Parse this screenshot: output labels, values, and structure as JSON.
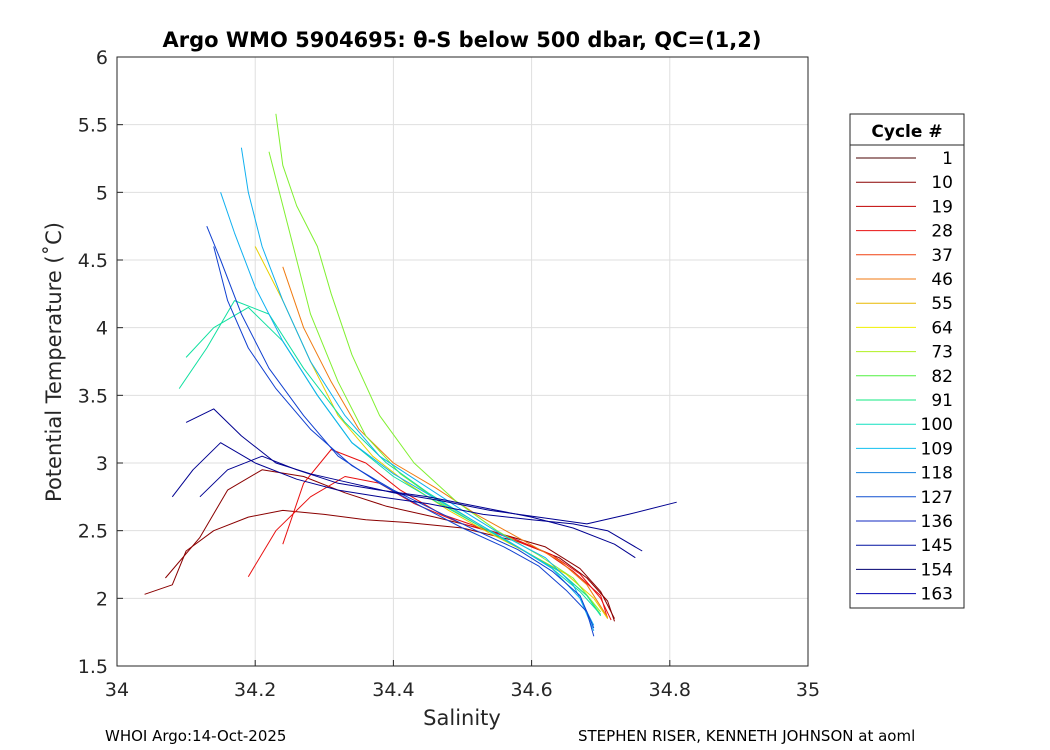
{
  "chart_data": {
    "type": "line",
    "title": "Argo WMO 5904695: θ-S below 500 dbar,  QC=(1,2)",
    "xlabel": "Salinity",
    "ylabel": "Potential Temperature (˚C)",
    "xlim": [
      34,
      35
    ],
    "ylim": [
      1.5,
      6
    ],
    "xticks": [
      "34",
      "34.2",
      "34.4",
      "34.6",
      "34.8",
      "35"
    ],
    "yticks": [
      "1.5",
      "2",
      "2.5",
      "3",
      "3.5",
      "4",
      "4.5",
      "5",
      "5.5",
      "6"
    ],
    "grid": true,
    "legend": {
      "title": "Cycle #",
      "placement": "outside-right",
      "entries": [
        {
          "label": "1",
          "color": "#4a0000"
        },
        {
          "label": "10",
          "color": "#8a0000"
        },
        {
          "label": "19",
          "color": "#c00000"
        },
        {
          "label": "28",
          "color": "#e81010"
        },
        {
          "label": "37",
          "color": "#f04010"
        },
        {
          "label": "46",
          "color": "#f07a10"
        },
        {
          "label": "55",
          "color": "#e8b800"
        },
        {
          "label": "64",
          "color": "#f0f000"
        },
        {
          "label": "73",
          "color": "#b0f020"
        },
        {
          "label": "82",
          "color": "#50f040"
        },
        {
          "label": "91",
          "color": "#10e880"
        },
        {
          "label": "100",
          "color": "#10e0c0"
        },
        {
          "label": "109",
          "color": "#10c0f0"
        },
        {
          "label": "118",
          "color": "#1080e0"
        },
        {
          "label": "127",
          "color": "#1050d0"
        },
        {
          "label": "136",
          "color": "#1028c0"
        },
        {
          "label": "145",
          "color": "#0010a0"
        },
        {
          "label": "154",
          "color": "#000070"
        },
        {
          "label": "163",
          "color": "#0000b0"
        }
      ]
    },
    "series": [
      {
        "name": "cycle 1-10",
        "color": "#8a0000",
        "curves": [
          {
            "x": [
              34.04,
              34.08,
              34.1,
              34.14,
              34.19,
              34.24,
              34.3,
              34.36,
              34.42,
              34.5,
              34.58,
              34.64,
              34.68,
              34.71,
              34.72
            ],
            "y": [
              2.03,
              2.1,
              2.35,
              2.5,
              2.6,
              2.65,
              2.62,
              2.58,
              2.56,
              2.52,
              2.42,
              2.3,
              2.15,
              1.98,
              1.83
            ]
          },
          {
            "x": [
              34.07,
              34.12,
              34.16,
              34.21,
              34.27,
              34.33,
              34.39,
              34.46,
              34.54,
              34.62,
              34.67,
              34.7,
              34.72
            ],
            "y": [
              2.15,
              2.45,
              2.8,
              2.95,
              2.9,
              2.78,
              2.68,
              2.6,
              2.5,
              2.38,
              2.22,
              2.05,
              1.85
            ]
          }
        ]
      },
      {
        "name": "cycle 19-37",
        "color": "#e81010",
        "curves": [
          {
            "x": [
              34.19,
              34.23,
              34.28,
              34.33,
              34.38,
              34.43,
              34.5,
              34.57,
              34.63,
              34.67,
              34.7,
              34.715
            ],
            "y": [
              2.16,
              2.5,
              2.75,
              2.9,
              2.85,
              2.7,
              2.55,
              2.45,
              2.32,
              2.18,
              2.0,
              1.84
            ]
          },
          {
            "x": [
              34.24,
              34.27,
              34.31,
              34.36,
              34.41,
              34.47,
              34.55,
              34.62,
              34.66,
              34.7,
              34.71
            ],
            "y": [
              2.4,
              2.85,
              3.1,
              3.0,
              2.8,
              2.62,
              2.48,
              2.34,
              2.2,
              2.02,
              1.85
            ]
          }
        ]
      },
      {
        "name": "cycle 46-55",
        "color": "#f07a10",
        "curves": [
          {
            "x": [
              34.24,
              34.27,
              34.31,
              34.35,
              34.4,
              34.46,
              34.52,
              34.58,
              34.64,
              34.68,
              34.71
            ],
            "y": [
              4.45,
              4.0,
              3.6,
              3.25,
              3.0,
              2.82,
              2.62,
              2.45,
              2.28,
              2.1,
              1.86
            ]
          }
        ]
      },
      {
        "name": "cycle 64",
        "color": "#e8d000",
        "curves": [
          {
            "x": [
              34.2,
              34.24,
              34.28,
              34.32,
              34.37,
              34.42,
              34.48,
              34.54,
              34.6,
              34.65,
              34.69,
              34.71
            ],
            "y": [
              4.6,
              4.2,
              3.75,
              3.35,
              3.05,
              2.85,
              2.65,
              2.48,
              2.32,
              2.18,
              2.0,
              1.85
            ]
          }
        ]
      },
      {
        "name": "cycle 73-82",
        "color": "#80f030",
        "curves": [
          {
            "x": [
              34.23,
              34.24,
              34.26,
              34.29,
              34.31,
              34.34,
              34.38,
              34.43,
              34.49,
              34.55,
              34.61,
              34.66,
              34.7
            ],
            "y": [
              5.58,
              5.2,
              4.9,
              4.6,
              4.25,
              3.8,
              3.35,
              3.0,
              2.72,
              2.5,
              2.32,
              2.15,
              1.9
            ]
          },
          {
            "x": [
              34.22,
              34.25,
              34.28,
              34.32,
              34.36,
              34.41,
              34.47,
              34.53,
              34.59,
              34.64,
              34.68,
              34.7
            ],
            "y": [
              5.3,
              4.7,
              4.1,
              3.6,
              3.2,
              2.92,
              2.7,
              2.52,
              2.35,
              2.2,
              2.02,
              1.88
            ]
          }
        ]
      },
      {
        "name": "cycle 91-100",
        "color": "#10e0a0",
        "curves": [
          {
            "x": [
              34.1,
              34.14,
              34.19,
              34.24,
              34.29,
              34.34,
              34.4,
              34.46,
              34.53,
              34.59,
              34.64,
              34.68,
              34.7
            ],
            "y": [
              3.78,
              4.0,
              4.15,
              3.9,
              3.5,
              3.15,
              2.9,
              2.72,
              2.52,
              2.35,
              2.2,
              2.02,
              1.87
            ]
          },
          {
            "x": [
              34.09,
              34.13,
              34.17,
              34.22,
              34.27,
              34.33,
              34.39,
              34.45,
              34.52,
              34.58,
              34.63,
              34.67,
              34.7
            ],
            "y": [
              3.55,
              3.85,
              4.2,
              4.1,
              3.7,
              3.3,
              3.0,
              2.78,
              2.56,
              2.38,
              2.22,
              2.05,
              1.88
            ]
          }
        ]
      },
      {
        "name": "cycle 109-118",
        "color": "#10b0f0",
        "curves": [
          {
            "x": [
              34.18,
              34.19,
              34.21,
              34.24,
              34.28,
              34.33,
              34.38,
              34.44,
              34.5,
              34.56,
              34.62,
              34.66,
              34.69
            ],
            "y": [
              5.33,
              5.0,
              4.6,
              4.2,
              3.75,
              3.35,
              3.05,
              2.85,
              2.65,
              2.46,
              2.3,
              2.1,
              1.8
            ]
          },
          {
            "x": [
              34.15,
              34.17,
              34.2,
              34.24,
              34.29,
              34.34,
              34.4,
              34.46,
              34.52,
              34.58,
              34.63,
              34.67,
              34.69
            ],
            "y": [
              5.0,
              4.7,
              4.3,
              3.9,
              3.5,
              3.15,
              2.92,
              2.74,
              2.56,
              2.38,
              2.22,
              2.0,
              1.76
            ]
          }
        ]
      },
      {
        "name": "cycle 127-136",
        "color": "#1040d0",
        "curves": [
          {
            "x": [
              34.13,
              34.15,
              34.18,
              34.22,
              34.27,
              34.32,
              34.38,
              34.44,
              34.5,
              34.56,
              34.61,
              34.65,
              34.68,
              34.69
            ],
            "y": [
              4.75,
              4.5,
              4.1,
              3.7,
              3.35,
              3.05,
              2.85,
              2.68,
              2.52,
              2.38,
              2.24,
              2.06,
              1.9,
              1.72
            ]
          },
          {
            "x": [
              34.14,
              34.16,
              34.19,
              34.23,
              34.28,
              34.34,
              34.4,
              34.46,
              34.52,
              34.58,
              34.63,
              34.67,
              34.69
            ],
            "y": [
              4.6,
              4.2,
              3.85,
              3.55,
              3.25,
              2.98,
              2.8,
              2.65,
              2.5,
              2.36,
              2.2,
              2.02,
              1.78
            ]
          }
        ]
      },
      {
        "name": "cycle 145-163",
        "color": "#000090",
        "curves": [
          {
            "x": [
              34.1,
              34.14,
              34.18,
              34.23,
              34.28,
              34.34,
              34.4,
              34.47,
              34.54,
              34.61,
              34.68,
              34.74,
              34.81
            ],
            "y": [
              3.3,
              3.4,
              3.2,
              3.0,
              2.92,
              2.85,
              2.78,
              2.72,
              2.65,
              2.6,
              2.55,
              2.62,
              2.71
            ]
          },
          {
            "x": [
              34.12,
              34.16,
              34.21,
              34.26,
              34.32,
              34.38,
              34.45,
              34.52,
              34.6,
              34.66,
              34.72,
              34.75
            ],
            "y": [
              2.75,
              2.95,
              3.05,
              2.95,
              2.85,
              2.8,
              2.75,
              2.68,
              2.6,
              2.52,
              2.4,
              2.3
            ]
          },
          {
            "x": [
              34.08,
              34.11,
              34.15,
              34.2,
              34.26,
              34.32,
              34.38,
              34.45,
              34.53,
              34.6,
              34.66,
              34.71,
              34.76
            ],
            "y": [
              2.75,
              2.95,
              3.15,
              3.0,
              2.88,
              2.8,
              2.75,
              2.7,
              2.62,
              2.58,
              2.55,
              2.5,
              2.35
            ]
          }
        ]
      }
    ]
  },
  "footer": {
    "left": "WHOI Argo:14-Oct-2025",
    "right": "STEPHEN RISER, KENNETH JOHNSON at aoml"
  }
}
